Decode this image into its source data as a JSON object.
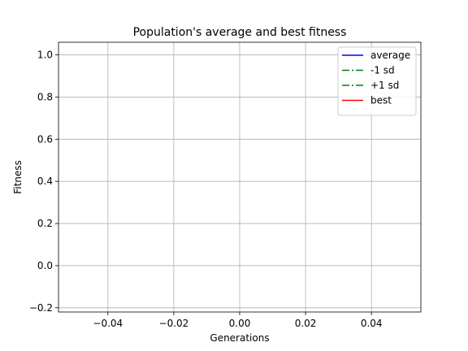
{
  "chart_data": {
    "type": "line",
    "title": "Population's average and best fitness",
    "xlabel": "Generations",
    "ylabel": "Fitness",
    "xlim": [
      -0.055,
      0.055
    ],
    "ylim": [
      -0.22,
      1.06
    ],
    "xticks": [
      -0.04,
      -0.02,
      0.0,
      0.02,
      0.04
    ],
    "xtick_labels": [
      "−0.04",
      "−0.02",
      "0.00",
      "0.02",
      "0.04"
    ],
    "yticks": [
      -0.2,
      0.0,
      0.2,
      0.4,
      0.6,
      0.8,
      1.0
    ],
    "ytick_labels": [
      "−0.2",
      "0.0",
      "0.2",
      "0.4",
      "0.6",
      "0.8",
      "1.0"
    ],
    "grid": true,
    "legend_position": "top-right",
    "series": [
      {
        "name": "average",
        "color": "#0000ff",
        "linestyle": "solid",
        "x": [],
        "y": []
      },
      {
        "name": "-1 sd",
        "color": "#008000",
        "linestyle": "dashdot",
        "x": [],
        "y": []
      },
      {
        "name": "+1 sd",
        "color": "#008000",
        "linestyle": "dashdot",
        "x": [],
        "y": []
      },
      {
        "name": "best",
        "color": "#ff0000",
        "linestyle": "solid",
        "x": [],
        "y": []
      }
    ]
  }
}
